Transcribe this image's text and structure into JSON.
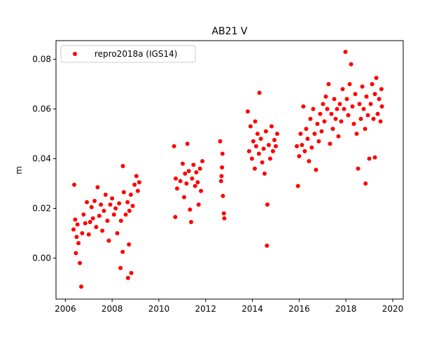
{
  "chart_data": {
    "type": "scatter",
    "title": "AB21 V",
    "xlabel": "",
    "ylabel": "m",
    "xlim": [
      2005.6,
      2020.45
    ],
    "ylim": [
      -0.0165,
      0.0875
    ],
    "xticks": [
      2006,
      2008,
      2010,
      2012,
      2014,
      2016,
      2018,
      2020
    ],
    "yticks": [
      0.0,
      0.02,
      0.04,
      0.06,
      0.08
    ],
    "ytick_labels": [
      "0.00",
      "0.02",
      "0.04",
      "0.06",
      "0.08"
    ],
    "grid": false,
    "legend_position": "top-left",
    "series": [
      {
        "name": "repro2018a (IGS14)",
        "color": "#ff0000",
        "marker": "circle",
        "points": [
          [
            2006.35,
            0.0115
          ],
          [
            2006.38,
            0.0295
          ],
          [
            2006.42,
            0.0155
          ],
          [
            2006.45,
            0.002
          ],
          [
            2006.48,
            0.0085
          ],
          [
            2006.52,
            0.0135
          ],
          [
            2006.56,
            0.006
          ],
          [
            2006.62,
            -0.002
          ],
          [
            2006.68,
            -0.0115
          ],
          [
            2006.72,
            0.01
          ],
          [
            2006.78,
            0.0175
          ],
          [
            2006.85,
            0.014
          ],
          [
            2006.92,
            0.0225
          ],
          [
            2007.0,
            0.0095
          ],
          [
            2007.06,
            0.0145
          ],
          [
            2007.12,
            0.0205
          ],
          [
            2007.18,
            0.016
          ],
          [
            2007.25,
            0.023
          ],
          [
            2007.32,
            0.0125
          ],
          [
            2007.38,
            0.0285
          ],
          [
            2007.45,
            0.017
          ],
          [
            2007.52,
            0.0215
          ],
          [
            2007.58,
            0.011
          ],
          [
            2007.65,
            0.019
          ],
          [
            2007.72,
            0.0255
          ],
          [
            2007.8,
            0.015
          ],
          [
            2007.86,
            0.007
          ],
          [
            2007.92,
            0.0215
          ],
          [
            2008.0,
            0.024
          ],
          [
            2008.08,
            0.0175
          ],
          [
            2008.15,
            0.02
          ],
          [
            2008.22,
            0.01
          ],
          [
            2008.3,
            0.022
          ],
          [
            2008.38,
            0.015
          ],
          [
            2008.45,
            0.0025
          ],
          [
            2008.5,
            0.0265
          ],
          [
            2008.58,
            0.0175
          ],
          [
            2008.66,
            0.0225
          ],
          [
            2008.74,
            0.019
          ],
          [
            2008.8,
            0.0255
          ],
          [
            2008.82,
            -0.006
          ],
          [
            2008.88,
            0.021
          ],
          [
            2008.96,
            0.0295
          ],
          [
            2009.04,
            0.033
          ],
          [
            2009.1,
            0.027
          ],
          [
            2009.16,
            0.0305
          ],
          [
            2008.72,
            0.0055
          ],
          [
            2008.68,
            -0.008
          ],
          [
            2008.36,
            -0.004
          ],
          [
            2008.46,
            0.037
          ],
          [
            2010.65,
            0.045
          ],
          [
            2010.7,
            0.0165
          ],
          [
            2010.72,
            0.032
          ],
          [
            2010.78,
            0.028
          ],
          [
            2010.92,
            0.031
          ],
          [
            2011.02,
            0.038
          ],
          [
            2011.08,
            0.0245
          ],
          [
            2011.12,
            0.034
          ],
          [
            2011.18,
            0.03
          ],
          [
            2011.22,
            0.046
          ],
          [
            2011.28,
            0.035
          ],
          [
            2011.33,
            0.0195
          ],
          [
            2011.38,
            0.0145
          ],
          [
            2011.42,
            0.032
          ],
          [
            2011.48,
            0.0375
          ],
          [
            2011.55,
            0.029
          ],
          [
            2011.6,
            0.0345
          ],
          [
            2011.66,
            0.0305
          ],
          [
            2011.7,
            0.0215
          ],
          [
            2011.76,
            0.036
          ],
          [
            2011.8,
            0.027
          ],
          [
            2011.86,
            0.039
          ],
          [
            2012.62,
            0.047
          ],
          [
            2012.66,
            0.031
          ],
          [
            2012.7,
            0.0365
          ],
          [
            2012.74,
            0.025
          ],
          [
            2012.78,
            0.018
          ],
          [
            2012.8,
            0.016
          ],
          [
            2012.72,
            0.042
          ],
          [
            2012.68,
            0.033
          ],
          [
            2013.8,
            0.059
          ],
          [
            2013.86,
            0.043
          ],
          [
            2013.92,
            0.053
          ],
          [
            2013.98,
            0.04
          ],
          [
            2014.04,
            0.047
          ],
          [
            2014.1,
            0.036
          ],
          [
            2014.16,
            0.045
          ],
          [
            2014.22,
            0.05
          ],
          [
            2014.28,
            0.042
          ],
          [
            2014.3,
            0.0665
          ],
          [
            2014.36,
            0.048
          ],
          [
            2014.42,
            0.0385
          ],
          [
            2014.48,
            0.044
          ],
          [
            2014.52,
            0.034
          ],
          [
            2014.58,
            0.051
          ],
          [
            2014.62,
            0.005
          ],
          [
            2014.64,
            0.0215
          ],
          [
            2014.7,
            0.0455
          ],
          [
            2014.76,
            0.04
          ],
          [
            2014.82,
            0.053
          ],
          [
            2014.88,
            0.043
          ],
          [
            2014.94,
            0.0475
          ],
          [
            2015.0,
            0.045
          ],
          [
            2015.06,
            0.05
          ],
          [
            2014.12,
            0.055
          ],
          [
            2015.9,
            0.045
          ],
          [
            2015.95,
            0.029
          ],
          [
            2016.0,
            0.041
          ],
          [
            2016.06,
            0.05
          ],
          [
            2016.12,
            0.0455
          ],
          [
            2016.18,
            0.061
          ],
          [
            2016.24,
            0.043
          ],
          [
            2016.3,
            0.052
          ],
          [
            2016.36,
            0.048
          ],
          [
            2016.42,
            0.039
          ],
          [
            2016.48,
            0.056
          ],
          [
            2016.54,
            0.0445
          ],
          [
            2016.6,
            0.06
          ],
          [
            2016.66,
            0.05
          ],
          [
            2016.72,
            0.0355
          ],
          [
            2016.78,
            0.054
          ],
          [
            2016.84,
            0.047
          ],
          [
            2016.9,
            0.058
          ],
          [
            2016.96,
            0.051
          ],
          [
            2017.02,
            0.062
          ],
          [
            2017.08,
            0.055
          ],
          [
            2017.14,
            0.065
          ],
          [
            2017.2,
            0.06
          ],
          [
            2017.26,
            0.07
          ],
          [
            2017.32,
            0.046
          ],
          [
            2017.38,
            0.058
          ],
          [
            2017.44,
            0.052
          ],
          [
            2017.5,
            0.064
          ],
          [
            2017.56,
            0.056
          ],
          [
            2017.62,
            0.06
          ],
          [
            2017.68,
            0.049
          ],
          [
            2017.74,
            0.062
          ],
          [
            2017.8,
            0.055
          ],
          [
            2017.86,
            0.068
          ],
          [
            2017.92,
            0.06
          ],
          [
            2017.98,
            0.083
          ],
          [
            2018.04,
            0.064
          ],
          [
            2018.1,
            0.0575
          ],
          [
            2018.16,
            0.07
          ],
          [
            2018.22,
            0.078
          ],
          [
            2018.28,
            0.061
          ],
          [
            2018.34,
            0.054
          ],
          [
            2018.4,
            0.066
          ],
          [
            2018.46,
            0.05
          ],
          [
            2018.52,
            0.036
          ],
          [
            2018.58,
            0.062
          ],
          [
            2018.64,
            0.056
          ],
          [
            2018.7,
            0.069
          ],
          [
            2018.76,
            0.06
          ],
          [
            2018.82,
            0.052
          ],
          [
            2018.88,
            0.065
          ],
          [
            2018.94,
            0.0575
          ],
          [
            2019.0,
            0.04
          ],
          [
            2019.06,
            0.062
          ],
          [
            2019.12,
            0.07
          ],
          [
            2019.18,
            0.056
          ],
          [
            2019.24,
            0.066
          ],
          [
            2019.3,
            0.0725
          ],
          [
            2019.36,
            0.058
          ],
          [
            2019.42,
            0.064
          ],
          [
            2019.48,
            0.055
          ],
          [
            2019.52,
            0.068
          ],
          [
            2019.54,
            0.061
          ],
          [
            2018.84,
            0.03
          ],
          [
            2019.24,
            0.0405
          ]
        ]
      }
    ]
  }
}
